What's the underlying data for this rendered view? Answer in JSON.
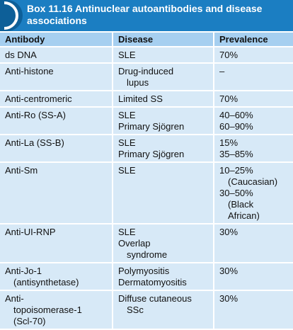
{
  "header": {
    "title": "Box 11.16 Antinuclear autoantibodies and disease associations"
  },
  "table": {
    "columns": [
      "Antibody",
      "Disease",
      "Prevalence"
    ],
    "rows": [
      {
        "cells": [
          [
            [
              "ds DNA"
            ]
          ],
          [
            [
              "SLE"
            ]
          ],
          [
            [
              "70%"
            ]
          ]
        ]
      },
      {
        "cells": [
          [
            [
              "Anti-histone"
            ]
          ],
          [
            [
              "Drug-induced",
              "lupus"
            ]
          ],
          [
            [
              "–"
            ]
          ]
        ]
      },
      {
        "cells": [
          [
            [
              "Anti-centromeric"
            ]
          ],
          [
            [
              "Limited SS"
            ]
          ],
          [
            [
              "70%"
            ]
          ]
        ]
      },
      {
        "cells": [
          [
            [
              "Anti-Ro (SS-A)"
            ]
          ],
          [
            [
              "SLE"
            ],
            [
              "Primary Sjögren"
            ]
          ],
          [
            [
              "40–60%"
            ],
            [
              "60–90%"
            ]
          ]
        ]
      },
      {
        "cells": [
          [
            [
              "Anti-La (SS-B)"
            ]
          ],
          [
            [
              "SLE"
            ],
            [
              "Primary Sjögren"
            ]
          ],
          [
            [
              "15%"
            ],
            [
              "35–85%"
            ]
          ]
        ]
      },
      {
        "cells": [
          [
            [
              "Anti-Sm"
            ]
          ],
          [
            [
              "SLE"
            ]
          ],
          [
            [
              "10–25%",
              "(Caucasian)"
            ],
            [
              "30–50%",
              "(Black",
              "African)"
            ]
          ]
        ]
      },
      {
        "cells": [
          [
            [
              "Anti-UI-RNP"
            ]
          ],
          [
            [
              "SLE"
            ],
            [
              "Overlap",
              "syndrome"
            ]
          ],
          [
            [
              "30%"
            ]
          ]
        ]
      },
      {
        "cells": [
          [
            [
              "Anti-Jo-1",
              "(antisynthetase)"
            ]
          ],
          [
            [
              "Polymyositis"
            ],
            [
              "Dermatomyositis"
            ]
          ],
          [
            [
              "30%"
            ]
          ]
        ]
      },
      {
        "cells": [
          [
            [
              "Anti-",
              "topoisomerase-1",
              "(Scl-70)"
            ]
          ],
          [
            [
              "Diffuse cutaneous",
              "SSc"
            ]
          ],
          [
            [
              "30%"
            ]
          ]
        ]
      }
    ]
  }
}
